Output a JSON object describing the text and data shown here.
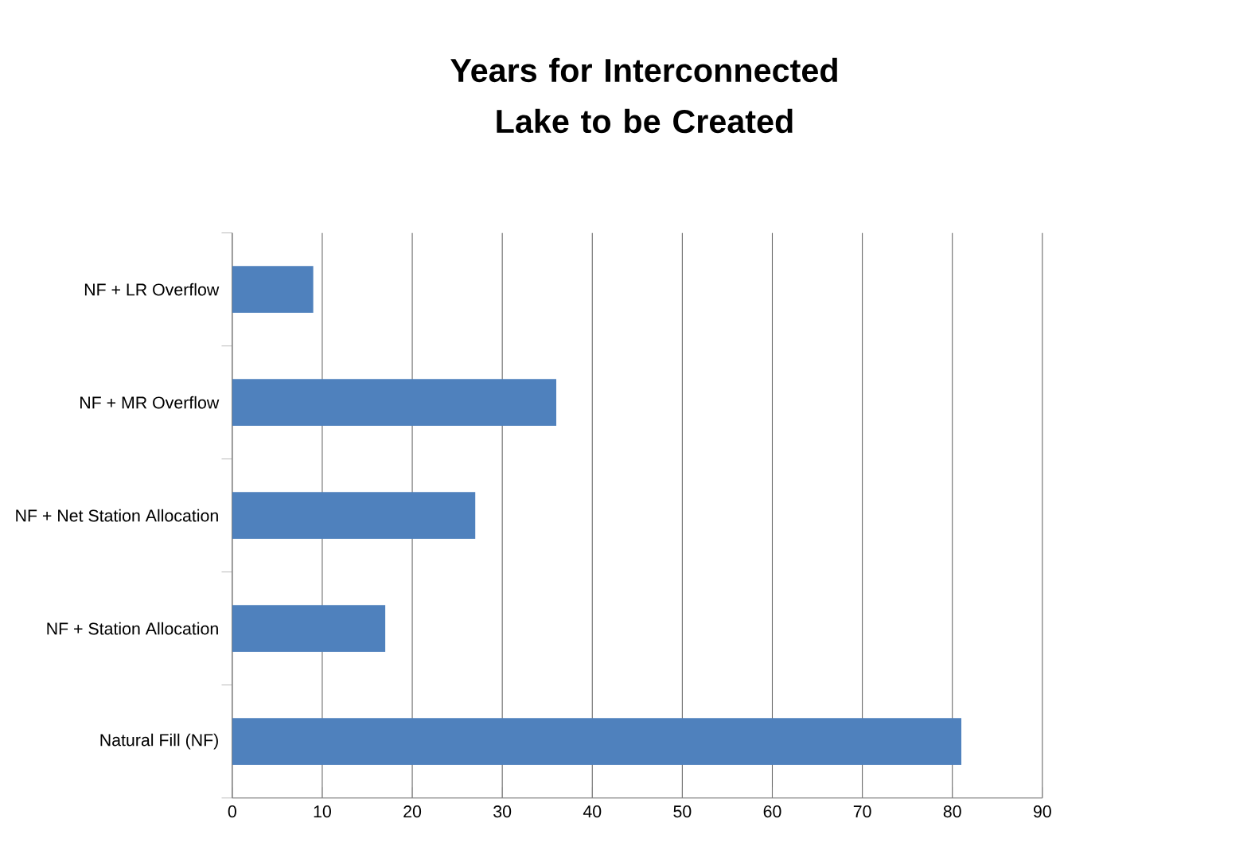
{
  "chart_data": {
    "type": "bar",
    "orientation": "horizontal",
    "title": "Years for Interconnected Lake to be Created",
    "categories": [
      "NF + LR Overflow",
      "NF + MR Overflow",
      "NF + Net Station Allocation",
      "NF + Station Allocation",
      "Natural Fill (NF)"
    ],
    "values": [
      9,
      36,
      27,
      17,
      81
    ],
    "color": "#4f81bd",
    "xlim": [
      0,
      90
    ],
    "xticks": [
      0,
      10,
      20,
      30,
      40,
      50,
      60,
      70,
      80,
      90
    ],
    "grid": "x"
  }
}
